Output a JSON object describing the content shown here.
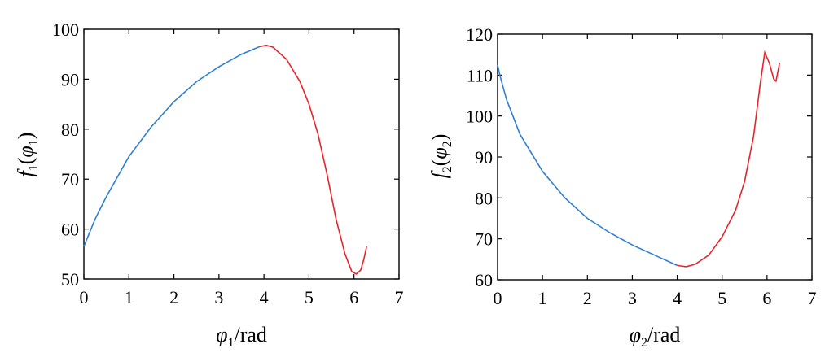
{
  "colors": {
    "blue_segment": "#2f7fd0",
    "red_segment": "#e8242a",
    "axes": "#000000"
  },
  "chart_data": [
    {
      "type": "line",
      "title": "",
      "xlabel": {
        "base": "φ",
        "sub": "1",
        "suffix": "/rad"
      },
      "ylabel": {
        "fn": "f",
        "fn_sub": "1",
        "open": "(",
        "arg": "φ",
        "arg_sub": "1",
        "close": ")"
      },
      "xlim": [
        0,
        7
      ],
      "ylim": [
        50,
        100
      ],
      "xticks": [
        0,
        1,
        2,
        3,
        4,
        5,
        6,
        7
      ],
      "yticks": [
        50,
        60,
        70,
        80,
        90,
        100
      ],
      "series": [
        {
          "color": "blue",
          "x": [
            0,
            0.25,
            0.5,
            0.75,
            1,
            1.5,
            2,
            2.5,
            3,
            3.5,
            3.9
          ],
          "y": [
            56.5,
            62,
            66.5,
            70.5,
            74.5,
            80.5,
            85.5,
            89.5,
            92.5,
            95,
            96.5
          ]
        },
        {
          "color": "red",
          "x": [
            3.9,
            4.05,
            4.2,
            4.5,
            4.8,
            5.0,
            5.2,
            5.4,
            5.6,
            5.8,
            5.95,
            6.05,
            6.15,
            6.22,
            6.28
          ],
          "y": [
            96.5,
            96.8,
            96.4,
            94.0,
            89.5,
            85.0,
            79.0,
            71.0,
            62.0,
            55.0,
            51.5,
            51.0,
            51.8,
            54.0,
            56.5
          ]
        }
      ]
    },
    {
      "type": "line",
      "title": "",
      "xlabel": {
        "base": "φ",
        "sub": "2",
        "suffix": "/rad"
      },
      "ylabel": {
        "fn": "f",
        "fn_sub": "2",
        "open": "(",
        "arg": "φ",
        "arg_sub": "2",
        "close": ")"
      },
      "xlim": [
        0,
        7
      ],
      "ylim": [
        60,
        120
      ],
      "xticks": [
        0,
        1,
        2,
        3,
        4,
        5,
        6,
        7
      ],
      "yticks": [
        60,
        70,
        80,
        90,
        100,
        110,
        120
      ],
      "series": [
        {
          "color": "blue",
          "x": [
            0,
            0.05,
            0.2,
            0.5,
            1,
            1.5,
            2,
            2.5,
            3,
            3.5,
            4.0
          ],
          "y": [
            112.5,
            110,
            104,
            95.5,
            86.5,
            80,
            75,
            71.5,
            68.5,
            66,
            63.5
          ]
        },
        {
          "color": "red",
          "x": [
            4.0,
            4.2,
            4.4,
            4.7,
            5.0,
            5.3,
            5.5,
            5.7,
            5.85,
            5.95,
            6.05,
            6.15,
            6.2,
            6.28
          ],
          "y": [
            63.5,
            63.2,
            63.8,
            66.0,
            70.5,
            77.0,
            84.0,
            95.0,
            108.0,
            115.5,
            113.0,
            109.0,
            108.5,
            113.0
          ]
        }
      ]
    }
  ]
}
